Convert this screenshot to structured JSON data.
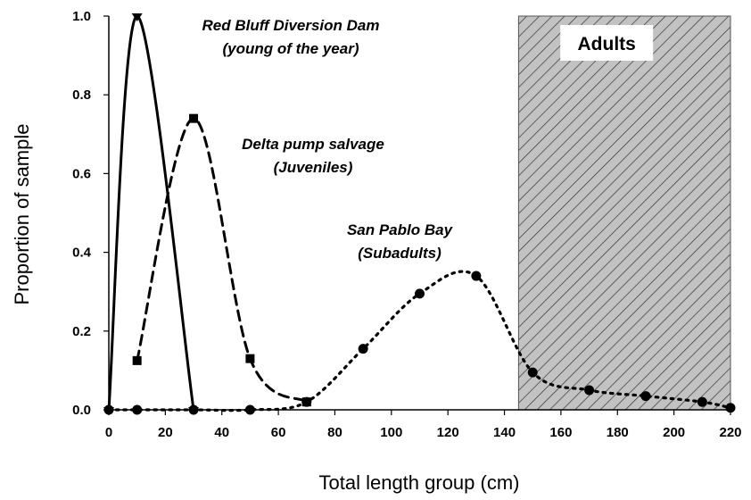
{
  "chart_data": {
    "type": "line",
    "xlabel": "Total length group (cm)",
    "ylabel": "Proportion of sample",
    "xlim": [
      0,
      220
    ],
    "ylim": [
      0,
      1.0
    ],
    "x_ticks": [
      "0",
      "20",
      "40",
      "60",
      "80",
      "100",
      "120",
      "140",
      "160",
      "180",
      "200",
      "220"
    ],
    "y_ticks": [
      "0.0",
      "0.2",
      "0.4",
      "0.6",
      "0.8",
      "1.0"
    ],
    "grid": false,
    "shaded_region": {
      "label": "Adults",
      "x_start": 145,
      "x_end": 220,
      "pattern": "diagonal-hatch"
    },
    "series": [
      {
        "key": "red-bluff",
        "line_style": "solid",
        "marker": "triangle",
        "color": "#000000",
        "x": [
          0,
          10,
          30
        ],
        "y": [
          0.0,
          1.0,
          0.0
        ]
      },
      {
        "key": "delta",
        "line_style": "dashed",
        "marker": "square",
        "color": "#000000",
        "x": [
          10,
          30,
          50,
          70
        ],
        "y": [
          0.125,
          0.74,
          0.13,
          0.02
        ]
      },
      {
        "key": "san-pablo",
        "line_style": "dotted",
        "marker": "circle",
        "color": "#000000",
        "x": [
          0,
          10,
          30,
          50,
          70,
          90,
          110,
          130,
          150,
          170,
          190,
          210,
          220
        ],
        "y": [
          0.0,
          0.0,
          0.0,
          0.0,
          0.02,
          0.155,
          0.295,
          0.34,
          0.095,
          0.05,
          0.035,
          0.02,
          0.005
        ]
      }
    ],
    "annotations": [
      {
        "key": "red-bluff",
        "lines": [
          "Red Bluff Diversion Dam",
          "(young of the year)"
        ]
      },
      {
        "key": "delta",
        "lines": [
          "Delta pump salvage",
          "(Juveniles)"
        ]
      },
      {
        "key": "san-pablo",
        "lines": [
          "San Pablo Bay",
          "(Subadults)"
        ]
      }
    ]
  }
}
